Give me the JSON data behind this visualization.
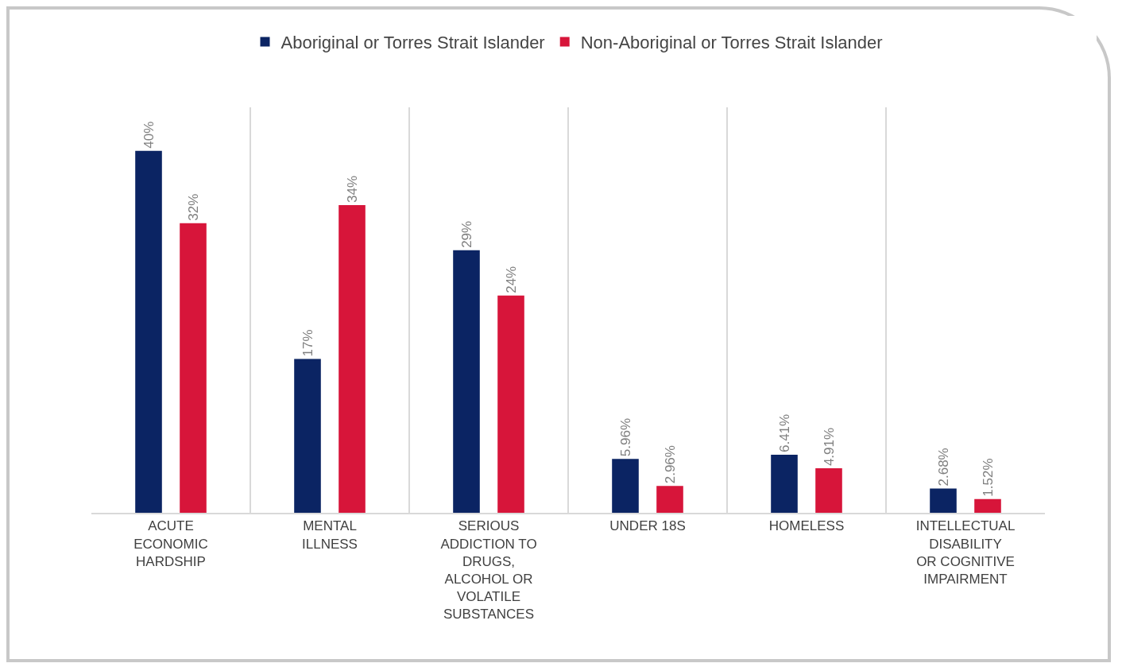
{
  "chart_data": {
    "type": "bar",
    "categories": [
      "ACUTE ECONOMIC HARDSHIP",
      "MENTAL ILLNESS",
      "SERIOUS ADDICTION TO DRUGS, ALCOHOL OR VOLATILE SUBSTANCES",
      "UNDER 18S",
      "HOMELESS",
      "INTELLECTUAL DISABILITY OR COGNITIVE IMPAIRMENT"
    ],
    "series": [
      {
        "name": "Aboriginal or Torres Strait Islander",
        "color": "#0b2463",
        "values": [
          40,
          17,
          29,
          5.96,
          6.41,
          2.68
        ],
        "value_labels": [
          "40%",
          "17%",
          "29%",
          "5.96%",
          "6.41%",
          "2.68%"
        ]
      },
      {
        "name": "Non-Aboriginal or Torres Strait Islander",
        "color": "#d7153a",
        "values": [
          32,
          34,
          24,
          2.96,
          4.91,
          1.52
        ],
        "value_labels": [
          "32%",
          "34%",
          "24%",
          "2.96%",
          "4.91%",
          "1.52%"
        ]
      }
    ],
    "grid": "x",
    "legend": "top"
  }
}
